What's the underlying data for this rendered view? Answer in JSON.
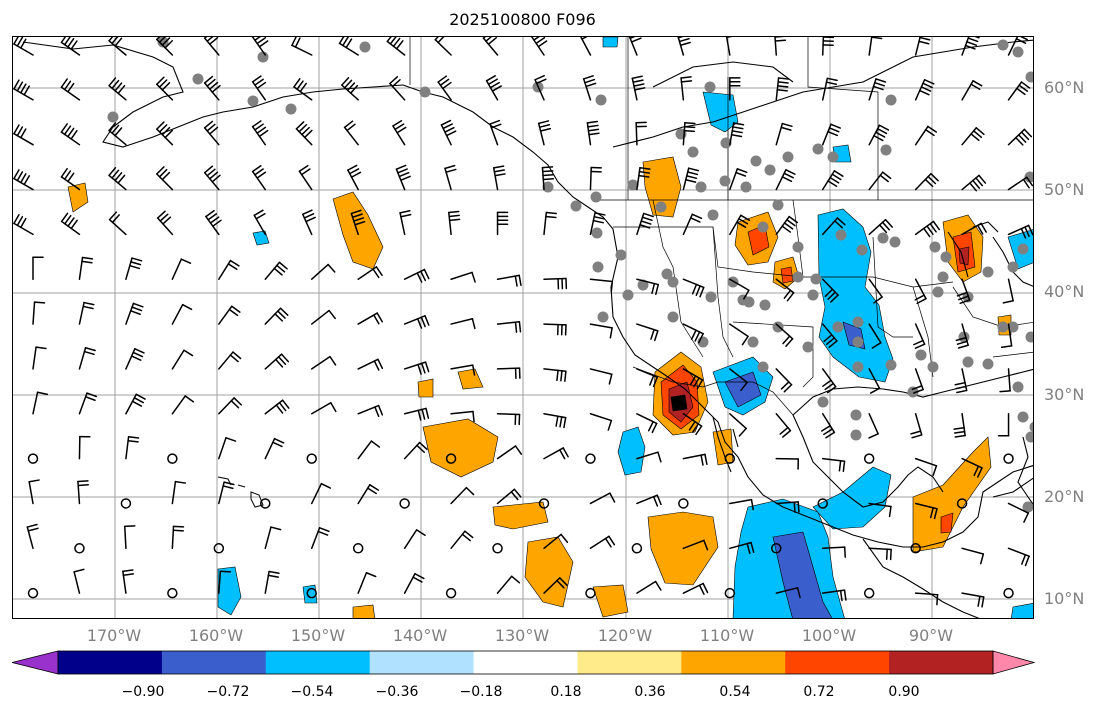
{
  "title": "2025100800 F096",
  "lat_labels": [
    "60°N",
    "50°N",
    "40°N",
    "30°N",
    "20°N",
    "10°N"
  ],
  "lon_labels": [
    "170°W",
    "160°W",
    "150°W",
    "140°W",
    "130°W",
    "120°W",
    "110°W",
    "100°W",
    "90°W"
  ],
  "colorbar": {
    "ticks": [
      "−0.90",
      "−0.72",
      "−0.54",
      "−0.36",
      "−0.18",
      "0.18",
      "0.36",
      "0.54",
      "0.72",
      "0.90"
    ],
    "colors": [
      "#9932cc",
      "#00008b",
      "#3a5fcd",
      "#00bfff",
      "#b0e2ff",
      "#ffffff",
      "#ffeb8a",
      "#ffa500",
      "#ff4500",
      "#b22222",
      "#ff88aa"
    ]
  },
  "colors": {
    "grid": "#a0a0a0",
    "coast": "#000000",
    "station": "#808080",
    "barb": "#000000"
  }
}
